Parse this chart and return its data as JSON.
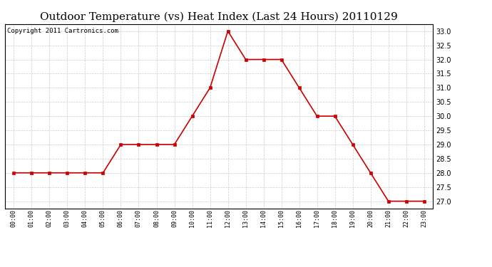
{
  "title": "Outdoor Temperature (vs) Heat Index (Last 24 Hours) 20110129",
  "copyright": "Copyright 2011 Cartronics.com",
  "x_labels": [
    "00:00",
    "01:00",
    "02:00",
    "03:00",
    "04:00",
    "05:00",
    "06:00",
    "07:00",
    "08:00",
    "09:00",
    "10:00",
    "11:00",
    "12:00",
    "13:00",
    "14:00",
    "15:00",
    "16:00",
    "17:00",
    "18:00",
    "19:00",
    "20:00",
    "21:00",
    "22:00",
    "23:00"
  ],
  "y_values": [
    28.0,
    28.0,
    28.0,
    28.0,
    28.0,
    28.0,
    29.0,
    29.0,
    29.0,
    29.0,
    30.0,
    31.0,
    33.0,
    32.0,
    32.0,
    32.0,
    31.0,
    30.0,
    30.0,
    29.0,
    28.0,
    27.0,
    27.0,
    27.0
  ],
  "line_color": "#cc0000",
  "marker": "s",
  "marker_size": 2.5,
  "ylim_min": 26.75,
  "ylim_max": 33.25,
  "yticks": [
    27.0,
    27.5,
    28.0,
    28.5,
    29.0,
    29.5,
    30.0,
    30.5,
    31.0,
    31.5,
    32.0,
    32.5,
    33.0
  ],
  "background_color": "#ffffff",
  "grid_color": "#cccccc",
  "title_fontsize": 11,
  "copyright_fontsize": 6.5
}
